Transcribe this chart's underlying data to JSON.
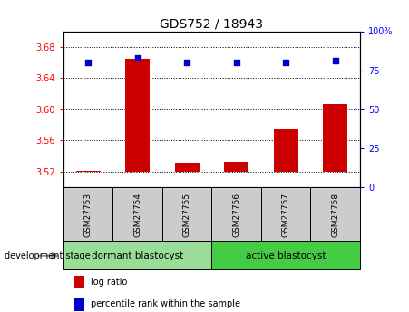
{
  "title": "GDS752 / 18943",
  "samples": [
    "GSM27753",
    "GSM27754",
    "GSM27755",
    "GSM27756",
    "GSM27757",
    "GSM27758"
  ],
  "log_ratios": [
    3.521,
    3.665,
    3.531,
    3.533,
    3.574,
    3.607
  ],
  "percentile_ranks": [
    80,
    83,
    80,
    80,
    80,
    81
  ],
  "ylim_left": [
    3.5,
    3.7
  ],
  "ylim_right": [
    0,
    100
  ],
  "yticks_left": [
    3.52,
    3.56,
    3.6,
    3.64,
    3.68
  ],
  "yticks_right": [
    0,
    25,
    50,
    75,
    100
  ],
  "ytick_labels_right": [
    "0",
    "25",
    "50",
    "75",
    "100%"
  ],
  "bar_color": "#cc0000",
  "dot_color": "#0000cc",
  "base_value": 3.52,
  "groups": [
    {
      "label": "dormant blastocyst",
      "indices": [
        0,
        1,
        2
      ],
      "color": "#99dd99"
    },
    {
      "label": "active blastocyst",
      "indices": [
        3,
        4,
        5
      ],
      "color": "#44cc44"
    }
  ],
  "group_row_label": "development stage",
  "legend_bar_label": "log ratio",
  "legend_dot_label": "percentile rank within the sample",
  "sample_box_color": "#cccccc",
  "bar_width": 0.5
}
